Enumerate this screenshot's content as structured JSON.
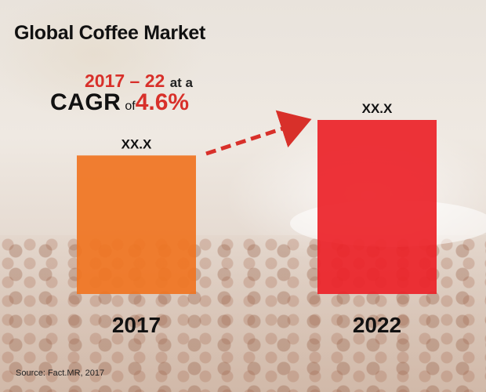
{
  "title": "Global Coffee Market",
  "cagr": {
    "period": "2017 – 22",
    "at_a": "at a",
    "label": "CAGR",
    "of": "of",
    "rate": "4.6%"
  },
  "colors": {
    "bar_2017": "#f07421",
    "bar_2022": "#ec2228",
    "arrow": "#d8302a",
    "accent_text": "#d8302a"
  },
  "chart_data": {
    "type": "bar",
    "categories": [
      "2017",
      "2022"
    ],
    "value_labels": [
      "XX.X",
      "XX.X"
    ],
    "relative_heights": [
      0.796,
      1.0
    ],
    "annotation": "2017 – 22 at a CAGR of 4.6%",
    "grid": false,
    "legend": "none"
  },
  "source": "Source: Fact.MR, 2017"
}
